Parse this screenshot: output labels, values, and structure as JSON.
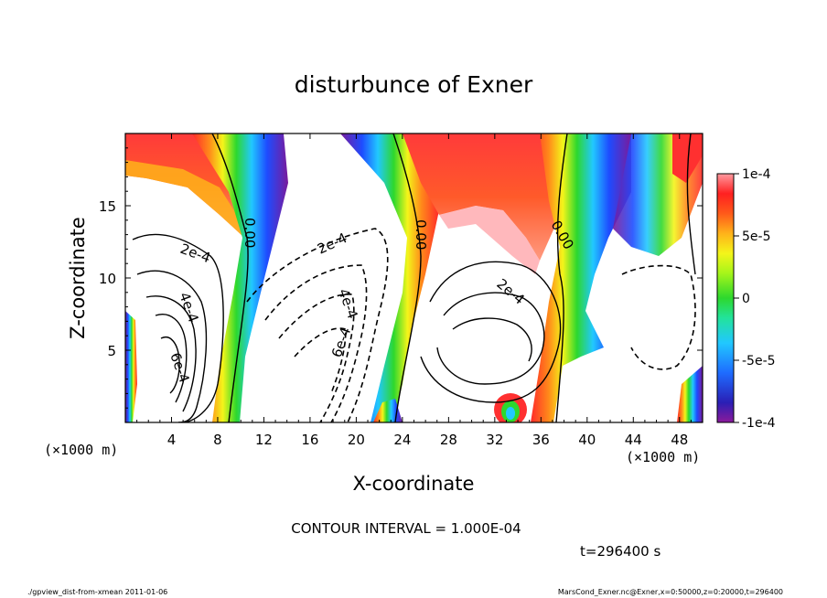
{
  "chart_data": {
    "type": "heatmap",
    "title": "disturbunce of Exner",
    "xlabel": "X-coordinate",
    "ylabel": "Z-coordinate",
    "x_unit": "(×1000 m)",
    "z_unit": "(×1000 m)",
    "xlim": [
      0,
      50
    ],
    "ylim": [
      0,
      20
    ],
    "xticks": [
      4,
      8,
      12,
      16,
      20,
      24,
      28,
      32,
      36,
      40,
      44,
      48
    ],
    "yticks": [
      5,
      10,
      15
    ],
    "colorbar": {
      "range": [
        -0.0001,
        0.0001
      ],
      "tick_values": [
        0.0001,
        5e-05,
        0,
        -5e-05,
        -0.0001
      ],
      "tick_labels": [
        "1e-4",
        "5e-5",
        "0",
        "-5e-5",
        "-1e-4"
      ]
    },
    "contour_labels": [
      "2e-4",
      "4e-4",
      "6e-4",
      "0.00",
      "0.00",
      "0.00",
      "2e-4",
      "4e-4",
      "6e-4",
      "2e-4"
    ],
    "contour_interval_text": "CONTOUR INTERVAL = 1.000E-04",
    "time_text": "t=296400 s"
  },
  "footer": {
    "left": "./gpview_dist-from-xmean  2011-01-06",
    "right": "MarsCond_Exner.nc@Exner,x=0:50000,z=0:20000,t=296400"
  }
}
